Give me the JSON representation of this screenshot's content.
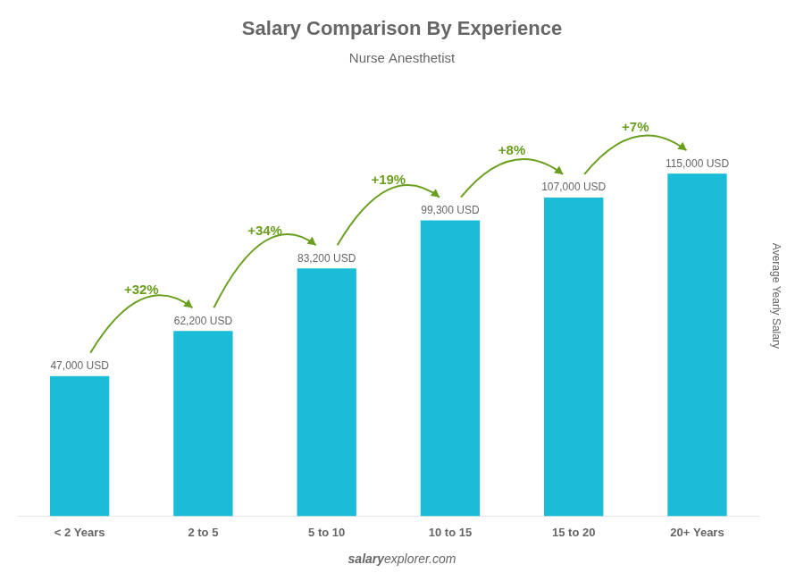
{
  "chart_data": {
    "type": "bar",
    "title": "Salary Comparison By Experience",
    "subtitle": "Nurse Anesthetist",
    "ylabel": "Average Yearly Salary",
    "categories": [
      "< 2 Years",
      "2 to 5",
      "5 to 10",
      "10 to 15",
      "15 to 20",
      "20+ Years"
    ],
    "values": [
      47000,
      62200,
      83200,
      99300,
      107000,
      115000
    ],
    "value_labels": [
      "47,000 USD",
      "62,200 USD",
      "83,200 USD",
      "99,300 USD",
      "107,000 USD",
      "115,000 USD"
    ],
    "data_labels": true,
    "annotations": [
      null,
      "+32%",
      "+34%",
      "+19%",
      "+8%",
      "+7%"
    ],
    "watermark": [
      "salary",
      "explorer.com"
    ],
    "color": "#1BBCD8",
    "ylim": [
      0,
      148000
    ],
    "grid": false,
    "tick_labels": "x"
  }
}
